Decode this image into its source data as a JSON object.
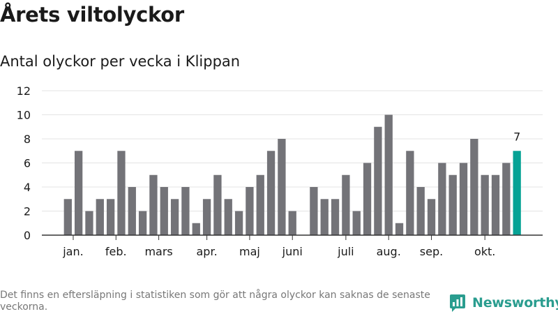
{
  "header": {
    "title": "Årets viltolyckor",
    "subtitle": "Antal olyckor per vecka i Klippan"
  },
  "footer": {
    "note": "Det finns en eftersläpning i statistiken som gör att några olyckor kan saknas de senaste veckorna.",
    "brand": "Newsworthy",
    "brand_icon": "newsworthy-chart-icon"
  },
  "colors": {
    "bar": "#737378",
    "highlight": "#06a295",
    "grid": "#e3e3e3",
    "axis": "#333333",
    "brand": "#2a9d8f"
  },
  "chart_data": {
    "type": "bar",
    "title": "Antal olyckor per vecka i Klippan",
    "xlabel": "",
    "ylabel": "",
    "ylim": [
      0,
      12
    ],
    "yticks": [
      0,
      2,
      4,
      6,
      8,
      10,
      12
    ],
    "grid": true,
    "weeks": [
      1,
      2,
      3,
      4,
      5,
      6,
      7,
      8,
      9,
      10,
      11,
      12,
      13,
      14,
      15,
      16,
      17,
      18,
      19,
      20,
      21,
      22,
      23,
      24,
      25,
      26,
      27,
      28,
      29,
      30,
      31,
      32,
      33,
      34,
      35,
      36,
      37,
      38,
      39,
      40,
      41,
      42,
      43
    ],
    "values": [
      3,
      7,
      2,
      3,
      3,
      7,
      4,
      2,
      5,
      4,
      3,
      4,
      1,
      3,
      5,
      3,
      2,
      4,
      5,
      7,
      8,
      2,
      0,
      4,
      3,
      3,
      5,
      2,
      6,
      9,
      10,
      1,
      7,
      4,
      3,
      6,
      5,
      6,
      8,
      5,
      5,
      6,
      7
    ],
    "highlight_index": 42,
    "highlight_label": "7",
    "month_labels": [
      {
        "label": "jan.",
        "week": 1.5
      },
      {
        "label": "feb.",
        "week": 5.5
      },
      {
        "label": "mars",
        "week": 9.5
      },
      {
        "label": "apr.",
        "week": 14
      },
      {
        "label": "maj",
        "week": 18
      },
      {
        "label": "juni",
        "week": 22
      },
      {
        "label": "juli",
        "week": 27
      },
      {
        "label": "aug.",
        "week": 31
      },
      {
        "label": "sep.",
        "week": 35
      },
      {
        "label": "okt.",
        "week": 40
      }
    ]
  }
}
